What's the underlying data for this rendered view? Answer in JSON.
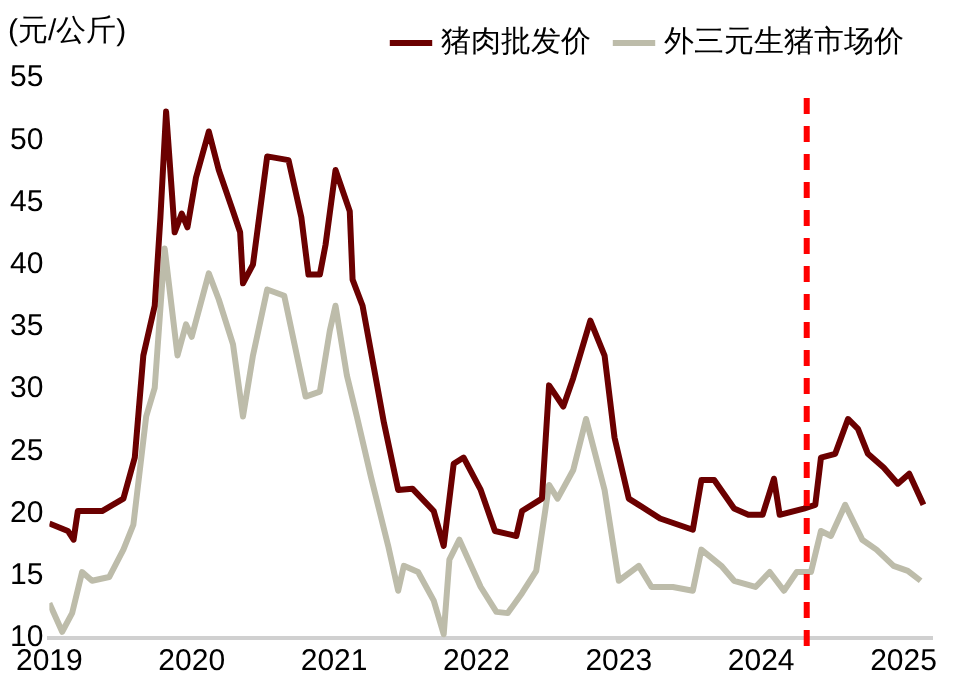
{
  "chart_data": {
    "type": "line",
    "ylabel": "(元/公斤)",
    "xlim": [
      2019,
      2025.2
    ],
    "xticks": [
      2019,
      2020,
      2021,
      2022,
      2023,
      2024,
      2025
    ],
    "ylim": [
      10,
      55
    ],
    "yticks": [
      10,
      15,
      20,
      25,
      30,
      35,
      40,
      45,
      50,
      55
    ],
    "grid": false,
    "legend": "top",
    "marker": "none",
    "line_style": "solid",
    "ref_lines": [
      {
        "axis": "x",
        "value": 2024.32,
        "color": "#ff0000",
        "line_style": "dashed"
      }
    ],
    "series": [
      {
        "name": "猪肉批发价",
        "color": "#6b0000",
        "x": [
          2019,
          2019.13,
          2019.17,
          2019.2,
          2019.37,
          2019.52,
          2019.6,
          2019.66,
          2019.74,
          2019.78,
          2019.82,
          2019.86,
          2019.88,
          2019.93,
          2019.97,
          2020.03,
          2020.12,
          2020.19,
          2020.29,
          2020.34,
          2020.36,
          2020.43,
          2020.53,
          2020.68,
          2020.77,
          2020.82,
          2020.9,
          2020.94,
          2021.01,
          2021.11,
          2021.13,
          2021.2,
          2021.28,
          2021.35,
          2021.45,
          2021.55,
          2021.7,
          2021.77,
          2021.84,
          2021.91,
          2022.03,
          2022.13,
          2022.28,
          2022.32,
          2022.46,
          2022.51,
          2022.61,
          2022.68,
          2022.8,
          2022.9,
          2022.97,
          2023.07,
          2023.14,
          2023.29,
          2023.52,
          2023.58,
          2023.67,
          2023.81,
          2023.91,
          2024.01,
          2024.09,
          2024.13,
          2024.3,
          2024.38,
          2024.42,
          2024.52,
          2024.61,
          2024.68,
          2024.75,
          2024.86,
          2024.96,
          2025.04,
          2025.14
        ],
        "values": [
          19.2,
          18.6,
          17.9,
          20.2,
          20.2,
          21.2,
          24.5,
          32.7,
          36.7,
          43.8,
          52.3,
          45.9,
          42.6,
          44.1,
          43,
          47,
          50.7,
          47.6,
          44.3,
          42.6,
          38.5,
          40,
          48.7,
          48.4,
          43.8,
          39.2,
          39.2,
          41.6,
          47.6,
          44.3,
          38.8,
          36.7,
          31.7,
          27.3,
          21.9,
          22,
          20.2,
          17.4,
          24,
          24.5,
          21.9,
          18.6,
          18.2,
          20.2,
          21.2,
          30.3,
          28.6,
          30.9,
          35.5,
          32.7,
          26.1,
          21.2,
          20.7,
          19.6,
          18.7,
          22.7,
          22.7,
          20.4,
          19.9,
          19.9,
          22.8,
          19.9,
          20.4,
          20.7,
          24.5,
          24.8,
          27.6,
          26.8,
          24.8,
          23.7,
          22.4,
          23.2,
          20.7
        ]
      },
      {
        "name": "外三元生猪市场价",
        "color": "#bdbcaa",
        "x": [
          2019,
          2019.09,
          2019.16,
          2019.23,
          2019.3,
          2019.42,
          2019.52,
          2019.59,
          2019.68,
          2019.74,
          2019.81,
          2019.9,
          2019.96,
          2020,
          2020.12,
          2020.19,
          2020.29,
          2020.36,
          2020.43,
          2020.53,
          2020.65,
          2020.8,
          2020.9,
          2020.97,
          2021.01,
          2021.09,
          2021.16,
          2021.26,
          2021.38,
          2021.45,
          2021.49,
          2021.59,
          2021.7,
          2021.77,
          2021.81,
          2021.88,
          2022.03,
          2022.14,
          2022.22,
          2022.32,
          2022.42,
          2022.51,
          2022.57,
          2022.68,
          2022.77,
          2022.9,
          2023,
          2023.14,
          2023.23,
          2023.38,
          2023.52,
          2023.58,
          2023.72,
          2023.81,
          2023.96,
          2024.06,
          2024.16,
          2024.25,
          2024.35,
          2024.42,
          2024.49,
          2024.59,
          2024.71,
          2024.81,
          2024.93,
          2025.03,
          2025.12
        ],
        "values": [
          12.8,
          10.5,
          12,
          15.3,
          14.6,
          14.9,
          17.1,
          19.1,
          27.8,
          30.1,
          41.3,
          32.7,
          35.2,
          34.2,
          39.3,
          37.2,
          33.6,
          27.8,
          32.7,
          38,
          37.5,
          29.4,
          29.8,
          34.7,
          36.7,
          31.1,
          27.8,
          22.9,
          17.4,
          13.8,
          15.8,
          15.3,
          13,
          10.3,
          16.3,
          17.9,
          14.1,
          12.1,
          12,
          13.6,
          15.4,
          22.3,
          21.2,
          23.5,
          27.6,
          21.9,
          14.6,
          15.8,
          14.1,
          14.1,
          13.8,
          17.1,
          15.8,
          14.6,
          14.1,
          15.3,
          13.8,
          15.3,
          15.3,
          18.6,
          18.2,
          20.7,
          17.9,
          17.1,
          15.8,
          15.4,
          14.6
        ]
      }
    ]
  }
}
